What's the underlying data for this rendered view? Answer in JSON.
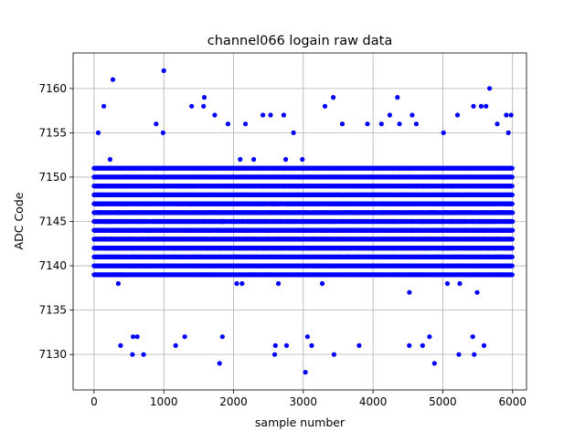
{
  "chart_data": {
    "type": "scatter",
    "title": "channel066 logain raw data",
    "xlabel": "sample number",
    "ylabel": "ADC Code",
    "xlim": [
      -300,
      6200
    ],
    "ylim": [
      7126,
      7164
    ],
    "xticks": [
      0,
      1000,
      2000,
      3000,
      4000,
      5000,
      6000
    ],
    "yticks": [
      7130,
      7135,
      7140,
      7145,
      7150,
      7155,
      7160
    ],
    "grid": true,
    "marker_color": "#0000ff",
    "n_samples": 6000,
    "band": {
      "core_min": 7138,
      "core_max": 7152,
      "center": 7145
    },
    "outliers": [
      {
        "x": 1000,
        "y": 7162
      },
      {
        "x": 270,
        "y": 7161
      },
      {
        "x": 5670,
        "y": 7160
      },
      {
        "x": 1580,
        "y": 7159
      },
      {
        "x": 3430,
        "y": 7159
      },
      {
        "x": 4350,
        "y": 7159
      },
      {
        "x": 140,
        "y": 7158
      },
      {
        "x": 1400,
        "y": 7158
      },
      {
        "x": 1570,
        "y": 7158
      },
      {
        "x": 5440,
        "y": 7158
      },
      {
        "x": 5550,
        "y": 7158
      },
      {
        "x": 5620,
        "y": 7158
      },
      {
        "x": 3310,
        "y": 7158
      },
      {
        "x": 4240,
        "y": 7157
      },
      {
        "x": 1730,
        "y": 7157
      },
      {
        "x": 2420,
        "y": 7157
      },
      {
        "x": 2530,
        "y": 7157
      },
      {
        "x": 2720,
        "y": 7157
      },
      {
        "x": 4560,
        "y": 7157
      },
      {
        "x": 5210,
        "y": 7157
      },
      {
        "x": 5910,
        "y": 7157
      },
      {
        "x": 5980,
        "y": 7157
      },
      {
        "x": 890,
        "y": 7156
      },
      {
        "x": 1920,
        "y": 7156
      },
      {
        "x": 3560,
        "y": 7156
      },
      {
        "x": 3920,
        "y": 7156
      },
      {
        "x": 4120,
        "y": 7156
      },
      {
        "x": 4620,
        "y": 7156
      },
      {
        "x": 5780,
        "y": 7156
      },
      {
        "x": 2170,
        "y": 7156
      },
      {
        "x": 4380,
        "y": 7156
      },
      {
        "x": 60,
        "y": 7155
      },
      {
        "x": 990,
        "y": 7155
      },
      {
        "x": 2860,
        "y": 7155
      },
      {
        "x": 5010,
        "y": 7155
      },
      {
        "x": 5940,
        "y": 7155
      },
      {
        "x": 1840,
        "y": 7132
      },
      {
        "x": 1300,
        "y": 7132
      },
      {
        "x": 3060,
        "y": 7132
      },
      {
        "x": 5430,
        "y": 7132
      },
      {
        "x": 4810,
        "y": 7132
      },
      {
        "x": 560,
        "y": 7132
      },
      {
        "x": 620,
        "y": 7132
      },
      {
        "x": 2600,
        "y": 7131
      },
      {
        "x": 3120,
        "y": 7131
      },
      {
        "x": 3800,
        "y": 7131
      },
      {
        "x": 4710,
        "y": 7131
      },
      {
        "x": 5590,
        "y": 7131
      },
      {
        "x": 380,
        "y": 7131
      },
      {
        "x": 1170,
        "y": 7131
      },
      {
        "x": 2760,
        "y": 7131
      },
      {
        "x": 4520,
        "y": 7131
      },
      {
        "x": 550,
        "y": 7130
      },
      {
        "x": 710,
        "y": 7130
      },
      {
        "x": 2590,
        "y": 7130
      },
      {
        "x": 3440,
        "y": 7130
      },
      {
        "x": 5230,
        "y": 7130
      },
      {
        "x": 5450,
        "y": 7130
      },
      {
        "x": 1800,
        "y": 7129
      },
      {
        "x": 4880,
        "y": 7129
      },
      {
        "x": 3030,
        "y": 7128
      }
    ]
  }
}
